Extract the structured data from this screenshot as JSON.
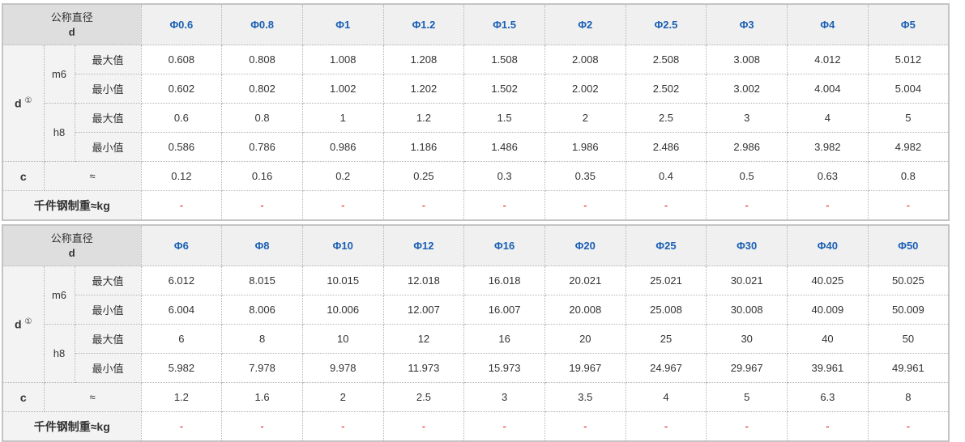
{
  "labels": {
    "nominal": "公称直径",
    "d": "d",
    "d_sup": "①",
    "m6": "m6",
    "h8": "h8",
    "max": "最大值",
    "min": "最小值",
    "c": "c",
    "approx": "≈",
    "weight": "千件钢制重≈kg"
  },
  "colors": {
    "header_text": "#1a5fb4",
    "dash": "#e00000"
  },
  "tables": [
    {
      "sizes": [
        "Φ0.6",
        "Φ0.8",
        "Φ1",
        "Φ1.2",
        "Φ1.5",
        "Φ2",
        "Φ2.5",
        "Φ3",
        "Φ4",
        "Φ5"
      ],
      "m6_max": [
        "0.608",
        "0.808",
        "1.008",
        "1.208",
        "1.508",
        "2.008",
        "2.508",
        "3.008",
        "4.012",
        "5.012"
      ],
      "m6_min": [
        "0.602",
        "0.802",
        "1.002",
        "1.202",
        "1.502",
        "2.002",
        "2.502",
        "3.002",
        "4.004",
        "5.004"
      ],
      "h8_max": [
        "0.6",
        "0.8",
        "1",
        "1.2",
        "1.5",
        "2",
        "2.5",
        "3",
        "4",
        "5"
      ],
      "h8_min": [
        "0.586",
        "0.786",
        "0.986",
        "1.186",
        "1.486",
        "1.986",
        "2.486",
        "2.986",
        "3.982",
        "4.982"
      ],
      "c": [
        "0.12",
        "0.16",
        "0.2",
        "0.25",
        "0.3",
        "0.35",
        "0.4",
        "0.5",
        "0.63",
        "0.8"
      ],
      "weight": [
        "-",
        "-",
        "-",
        "-",
        "-",
        "-",
        "-",
        "-",
        "-",
        "-"
      ]
    },
    {
      "sizes": [
        "Φ6",
        "Φ8",
        "Φ10",
        "Φ12",
        "Φ16",
        "Φ20",
        "Φ25",
        "Φ30",
        "Φ40",
        "Φ50"
      ],
      "m6_max": [
        "6.012",
        "8.015",
        "10.015",
        "12.018",
        "16.018",
        "20.021",
        "25.021",
        "30.021",
        "40.025",
        "50.025"
      ],
      "m6_min": [
        "6.004",
        "8.006",
        "10.006",
        "12.007",
        "16.007",
        "20.008",
        "25.008",
        "30.008",
        "40.009",
        "50.009"
      ],
      "h8_max": [
        "6",
        "8",
        "10",
        "12",
        "16",
        "20",
        "25",
        "30",
        "40",
        "50"
      ],
      "h8_min": [
        "5.982",
        "7.978",
        "9.978",
        "11.973",
        "15.973",
        "19.967",
        "24.967",
        "29.967",
        "39.961",
        "49.961"
      ],
      "c": [
        "1.2",
        "1.6",
        "2",
        "2.5",
        "3",
        "3.5",
        "4",
        "5",
        "6.3",
        "8"
      ],
      "weight": [
        "-",
        "-",
        "-",
        "-",
        "-",
        "-",
        "-",
        "-",
        "-",
        "-"
      ]
    }
  ]
}
